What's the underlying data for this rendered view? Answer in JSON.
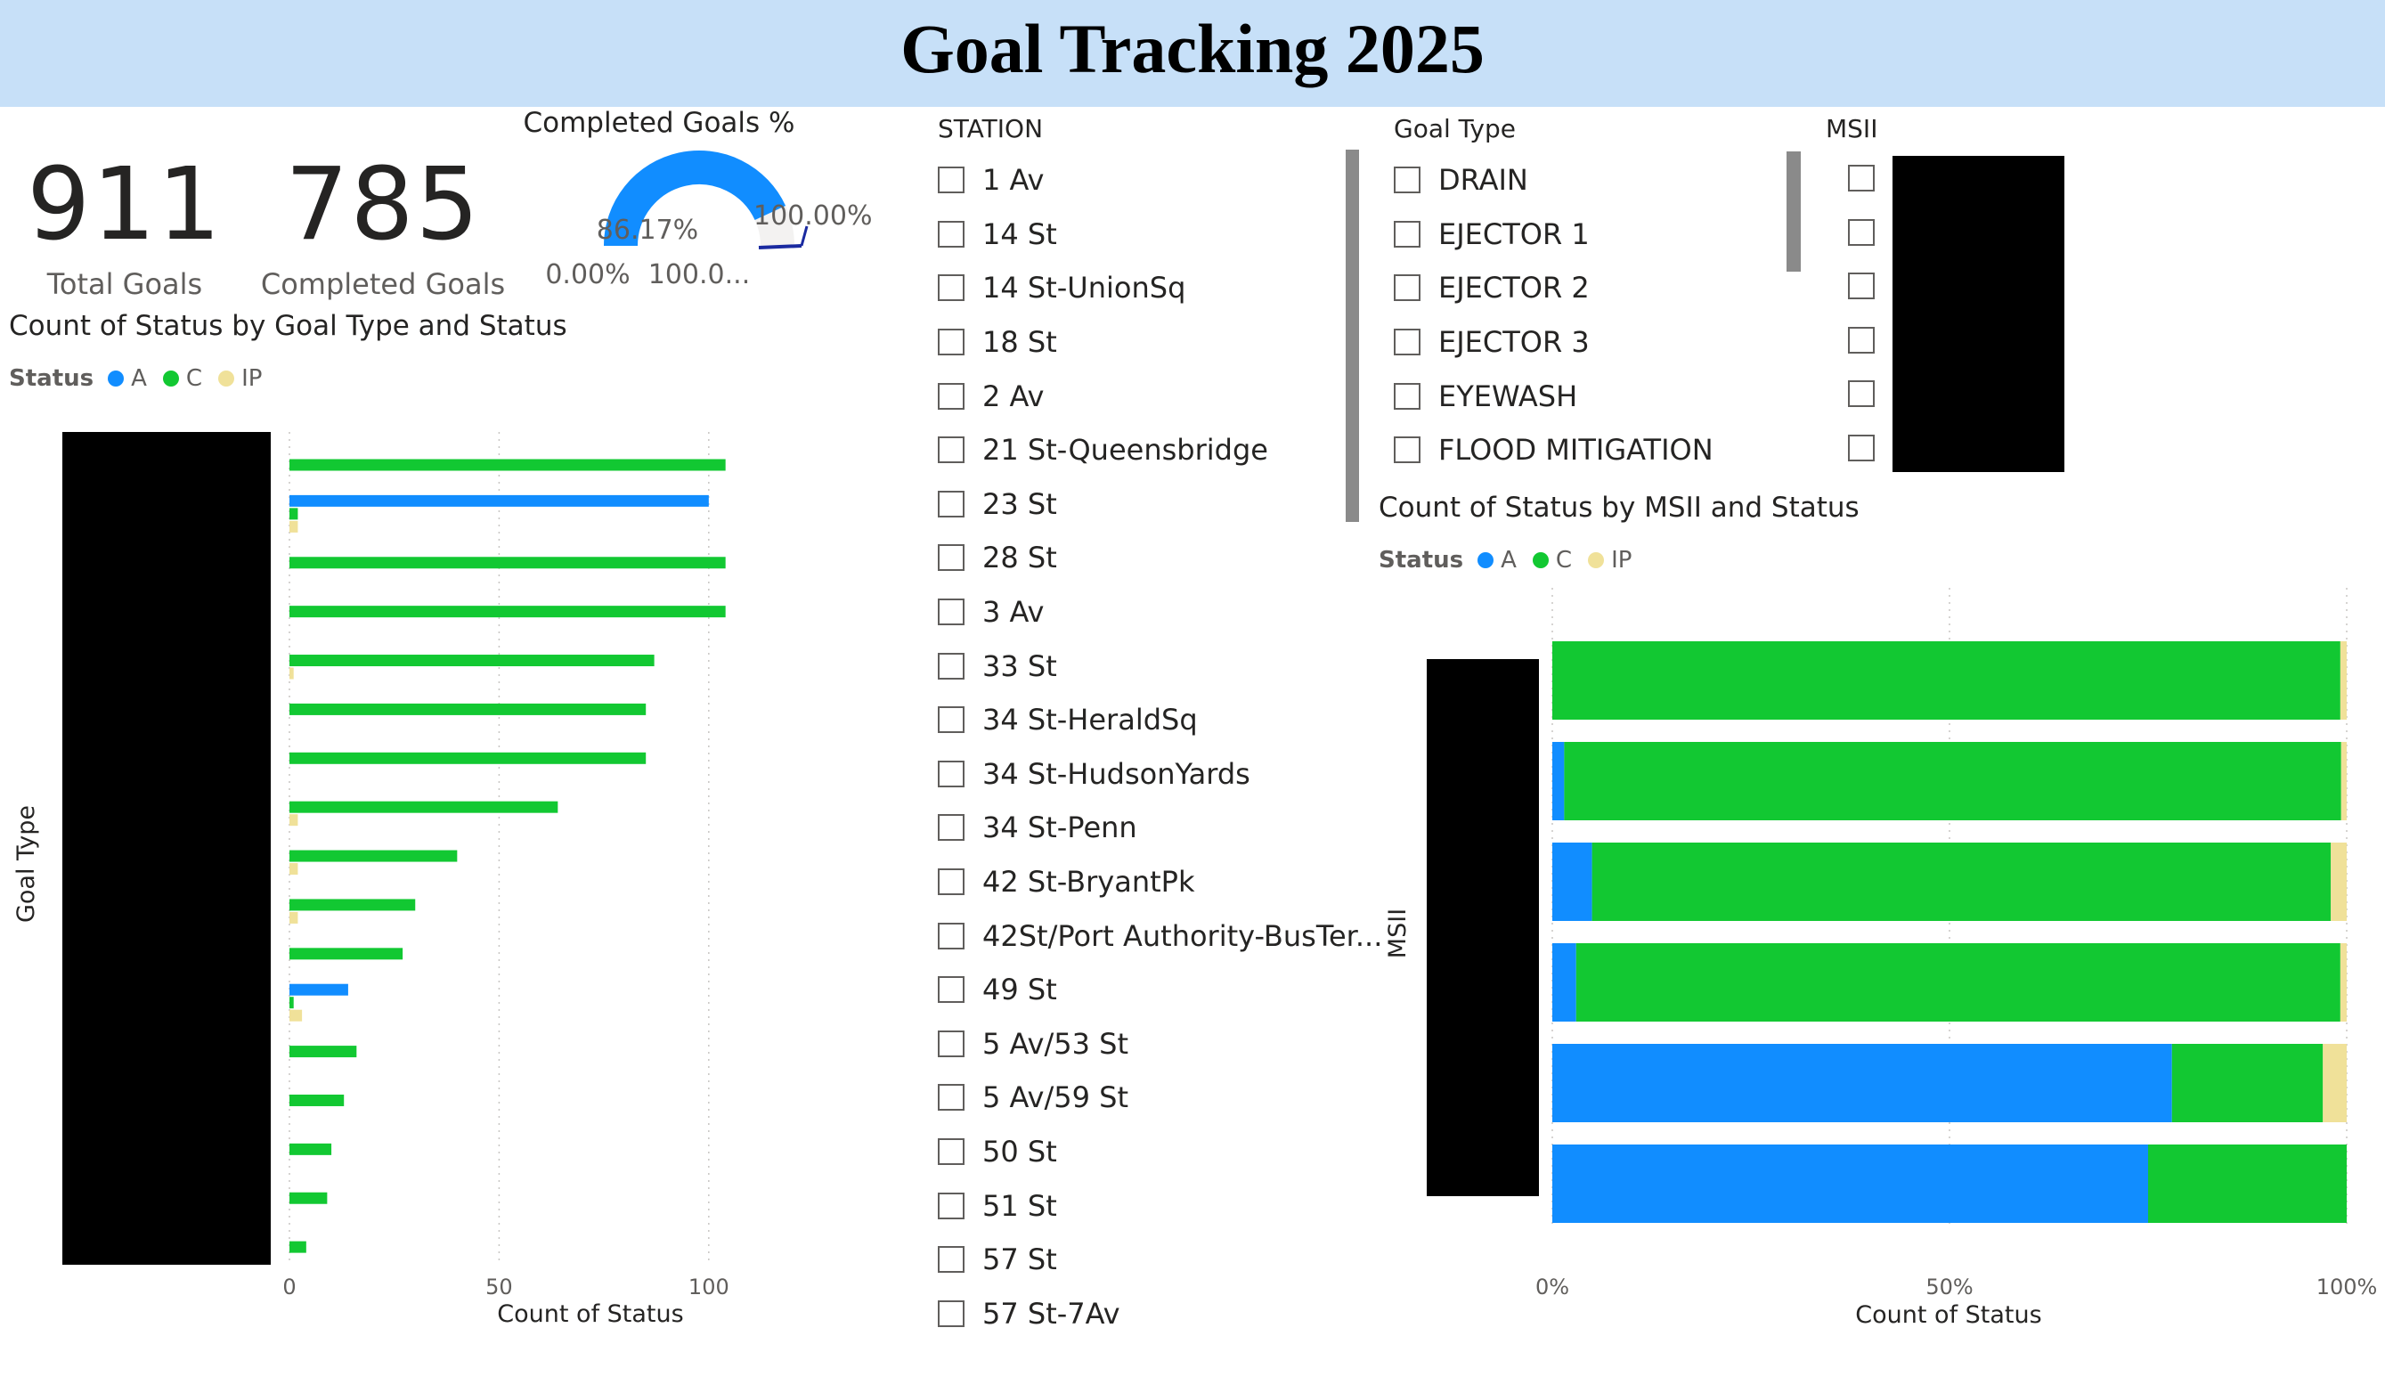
{
  "page": {
    "title": "Goal Tracking 2025"
  },
  "kpis": [
    {
      "value": "911",
      "label": "Total Goals"
    },
    {
      "value": "785",
      "label": "Completed Goals"
    }
  ],
  "gauge": {
    "title": "Completed Goals %",
    "value_label": "86.17%",
    "value": 86.17,
    "min_label": "0.00%",
    "max_label": "100.0...",
    "target_label": "100.00%",
    "colors": {
      "fill": "#118dff",
      "track": "#f3f2f1",
      "target": "#1a2aa0"
    }
  },
  "colors": {
    "A": "#118dff",
    "C": "#12c832",
    "IP": "#f0e199"
  },
  "station_slicer": {
    "title": "STATION",
    "items": [
      "1 Av",
      "14 St",
      "14 St-UnionSq",
      "18 St",
      "2 Av",
      "21 St-Queensbridge",
      "23 St",
      "28 St",
      "3 Av",
      "33 St",
      "34 St-HeraldSq",
      "34 St-HudsonYards",
      "34 St-Penn",
      "42 St-BryantPk",
      "42St/Port Authority-BusTer...",
      "49 St",
      "5 Av/53 St",
      "5 Av/59 St",
      "50 St",
      "51 St",
      "57 St",
      "57 St-7Av"
    ]
  },
  "goal_type_slicer": {
    "title": "Goal Type",
    "items": [
      "DRAIN",
      "EJECTOR 1",
      "EJECTOR 2",
      "EJECTOR 3",
      "EYEWASH",
      "FLOOD MITIGATION"
    ]
  },
  "msii_slicer": {
    "title": "MSII"
  },
  "chart_data": [
    {
      "type": "bar",
      "orientation": "horizontal",
      "title": "Count of Status by Goal Type and Status",
      "legend": {
        "title": "Status",
        "position": "top-left",
        "entries": [
          "A",
          "C",
          "IP"
        ]
      },
      "xlabel": "Count of Status",
      "ylabel": "Goal Type",
      "xlim": [
        0,
        120
      ],
      "xticks": [
        0,
        50,
        100
      ],
      "categories_redacted": true,
      "series": [
        {
          "name": "A",
          "values": [
            0,
            100,
            0,
            0,
            0,
            0,
            0,
            0,
            0,
            0,
            0,
            14,
            0,
            0,
            0,
            0,
            0
          ]
        },
        {
          "name": "C",
          "values": [
            104,
            2,
            104,
            104,
            87,
            85,
            85,
            64,
            40,
            30,
            27,
            1,
            16,
            13,
            10,
            9,
            4
          ]
        },
        {
          "name": "IP",
          "values": [
            0,
            2,
            0,
            0,
            1,
            0,
            0,
            2,
            2,
            2,
            0,
            3,
            0,
            0,
            0,
            0,
            0
          ]
        }
      ]
    },
    {
      "type": "bar",
      "orientation": "horizontal",
      "stacked": "100%",
      "title": "Count of Status by MSII and Status",
      "legend": {
        "title": "Status",
        "position": "top-left",
        "entries": [
          "A",
          "C",
          "IP"
        ]
      },
      "xlabel": "Count of Status",
      "ylabel": "MSII",
      "xlim": [
        0,
        100
      ],
      "xtick_labels": [
        "0%",
        "50%",
        "100%"
      ],
      "categories_redacted": true,
      "series": [
        {
          "name": "A",
          "values": [
            0,
            1.5,
            5,
            3,
            78,
            75
          ]
        },
        {
          "name": "C",
          "values": [
            99.2,
            97.8,
            93,
            96.2,
            19,
            25
          ]
        },
        {
          "name": "IP",
          "values": [
            0.8,
            0.7,
            2,
            0.8,
            3,
            0
          ]
        }
      ]
    }
  ]
}
